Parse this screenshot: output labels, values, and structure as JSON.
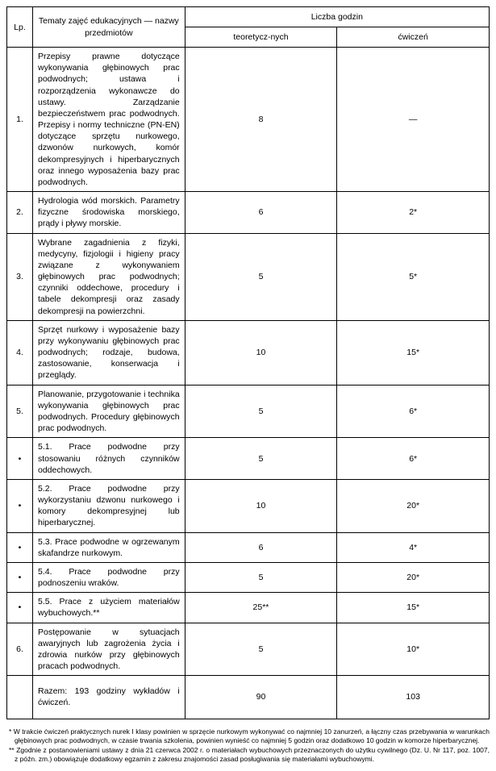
{
  "header": {
    "lp": "Lp.",
    "topics": "Tematy zajęć edukacyjnych — nazwy przedmiotów",
    "hours": "Liczba godzin",
    "theory": "teoretycz-nych",
    "exercises": "ćwiczeń"
  },
  "rows": [
    {
      "lp": "1.",
      "topic": "Przepisy prawne dotyczące wykonywania głębinowych prac podwodnych; ustawa i rozporządzenia wykonawcze do ustawy. Zarządzanie bezpieczeństwem prac podwodnych. Przepisy i normy techniczne (PN-EN) dotyczące sprzętu nurkowego, dzwonów nurkowych, komór dekompresyjnych i hiperbarycznych oraz innego wyposażenia bazy prac podwodnych.",
      "theory": "8",
      "exercises": "—"
    },
    {
      "lp": "2.",
      "topic": "Hydrologia wód morskich. Parametry fizyczne środowiska morskiego, prądy i pływy morskie.",
      "theory": "6",
      "exercises": "2*"
    },
    {
      "lp": "3.",
      "topic": "Wybrane zagadnienia z fizyki, medycyny, fizjologii i higieny pracy związane z wykonywaniem głębinowych prac podwodnych; czynniki oddechowe, procedury i tabele dekompresji oraz zasady dekompresji na powierzchni.",
      "theory": "5",
      "exercises": "5*"
    },
    {
      "lp": "4.",
      "topic": "Sprzęt nurkowy i wyposażenie bazy przy wykonywaniu głębinowych prac podwodnych; rodzaje, budowa, zastosowanie, konserwacja i przeglądy.",
      "theory": "10",
      "exercises": "15*"
    },
    {
      "lp": "5.",
      "topic": "Planowanie, przygotowanie i technika wykonywania głębinowych prac podwodnych. Procedury głębinowych prac podwodnych.",
      "theory": "5",
      "exercises": "6*"
    },
    {
      "lp": "•",
      "topic": "5.1. Prace podwodne przy stosowaniu różnych czynników oddechowych.",
      "theory": "5",
      "exercises": "6*"
    },
    {
      "lp": "•",
      "topic": "5.2. Prace podwodne przy wykorzystaniu dzwonu nurkowego i komory dekompresyjnej lub hiperbarycznej.",
      "theory": "10",
      "exercises": "20*"
    },
    {
      "lp": "•",
      "topic": "5.3. Prace podwodne w ogrzewanym skafandrze nurkowym.",
      "theory": "6",
      "exercises": "4*"
    },
    {
      "lp": "•",
      "topic": "5.4. Prace podwodne przy podnoszeniu wraków.",
      "theory": "5",
      "exercises": "20*"
    },
    {
      "lp": "•",
      "topic": "5.5. Prace z użyciem materiałów wybuchowych.**",
      "theory": "25**",
      "exercises": "15*"
    },
    {
      "lp": "6.",
      "topic": "Postępowanie w sytuacjach awaryjnych lub zagrożenia życia i zdrowia nurków przy głębinowych pracach podwodnych.",
      "theory": "5",
      "exercises": "10*"
    }
  ],
  "summary": {
    "label": "Razem: 193 godziny wykładów i ćwiczeń.",
    "theory": "90",
    "exercises": "103"
  },
  "footnotes": {
    "f1": "* W trakcie ćwiczeń praktycznych nurek I klasy powinien w sprzęcie nurkowym wykonywać co najmniej 10 zanurzeń, a łączny czas przebywania w warunkach głębinowych prac podwodnych, w czasie trwania szkolenia, powinien wynieść co najmniej 5 godzin oraz dodatkowo 10 godzin w komorze hiperbarycznej.",
    "f2": "** Zgodnie z postanowieniami ustawy z dnia 21 czerwca 2002 r. o materiałach wybuchowych przeznaczonych do użytku cywilnego (Dz. U. Nr 117, poz. 1007, z późn. zm.) obowiązuje dodatkowy egzamin z zakresu znajomości zasad posługiwania się materiałami wybuchowymi."
  }
}
